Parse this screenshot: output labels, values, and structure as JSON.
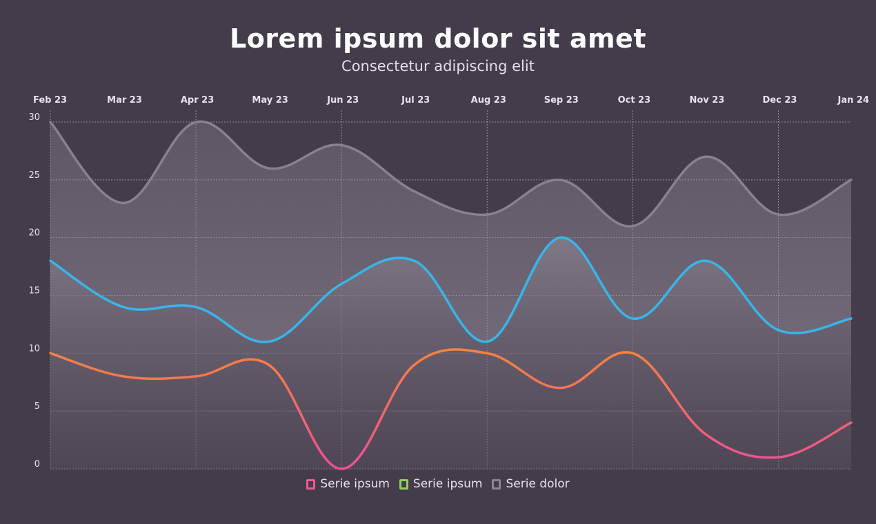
{
  "chart_data": {
    "type": "line",
    "title": "Lorem ipsum dolor sit amet",
    "subtitle": "Consectetur adipiscing elit",
    "categories": [
      "Feb 23",
      "Mar 23",
      "Apr 23",
      "May 23",
      "Jun 23",
      "Jul 23",
      "Aug 23",
      "Sep 23",
      "Oct 23",
      "Nov 23",
      "Dec 23",
      "Jan 24"
    ],
    "series": [
      {
        "name": "Serie dolor",
        "values": [
          30,
          23,
          30,
          26,
          28,
          24,
          22,
          25,
          21,
          27,
          22,
          25
        ],
        "color": "#8a8190",
        "style": "area"
      },
      {
        "name": "Serie ipsum",
        "values": [
          18,
          14,
          14,
          11,
          16,
          18,
          11,
          20,
          13,
          18,
          12,
          13
        ],
        "color": "#37b6ec",
        "style": "area"
      },
      {
        "name": "Serie ipsum",
        "values": [
          10,
          8,
          8,
          9,
          0,
          9,
          10,
          7,
          10,
          3,
          1,
          4
        ],
        "color": "#f5784a",
        "color_low": "#f0588f",
        "style": "line"
      }
    ],
    "legend": [
      {
        "label": "Serie ipsum",
        "color": "#ef5a8c"
      },
      {
        "label": "Serie ipsum",
        "color": "#8fd15a"
      },
      {
        "label": "Serie dolor",
        "color": "#8e8594"
      }
    ],
    "yticks": [
      0,
      5,
      10,
      15,
      20,
      25,
      30
    ],
    "ylim": [
      0,
      30
    ],
    "xaxis_position": "top",
    "legend_position": "bottom-center",
    "grid": true
  }
}
